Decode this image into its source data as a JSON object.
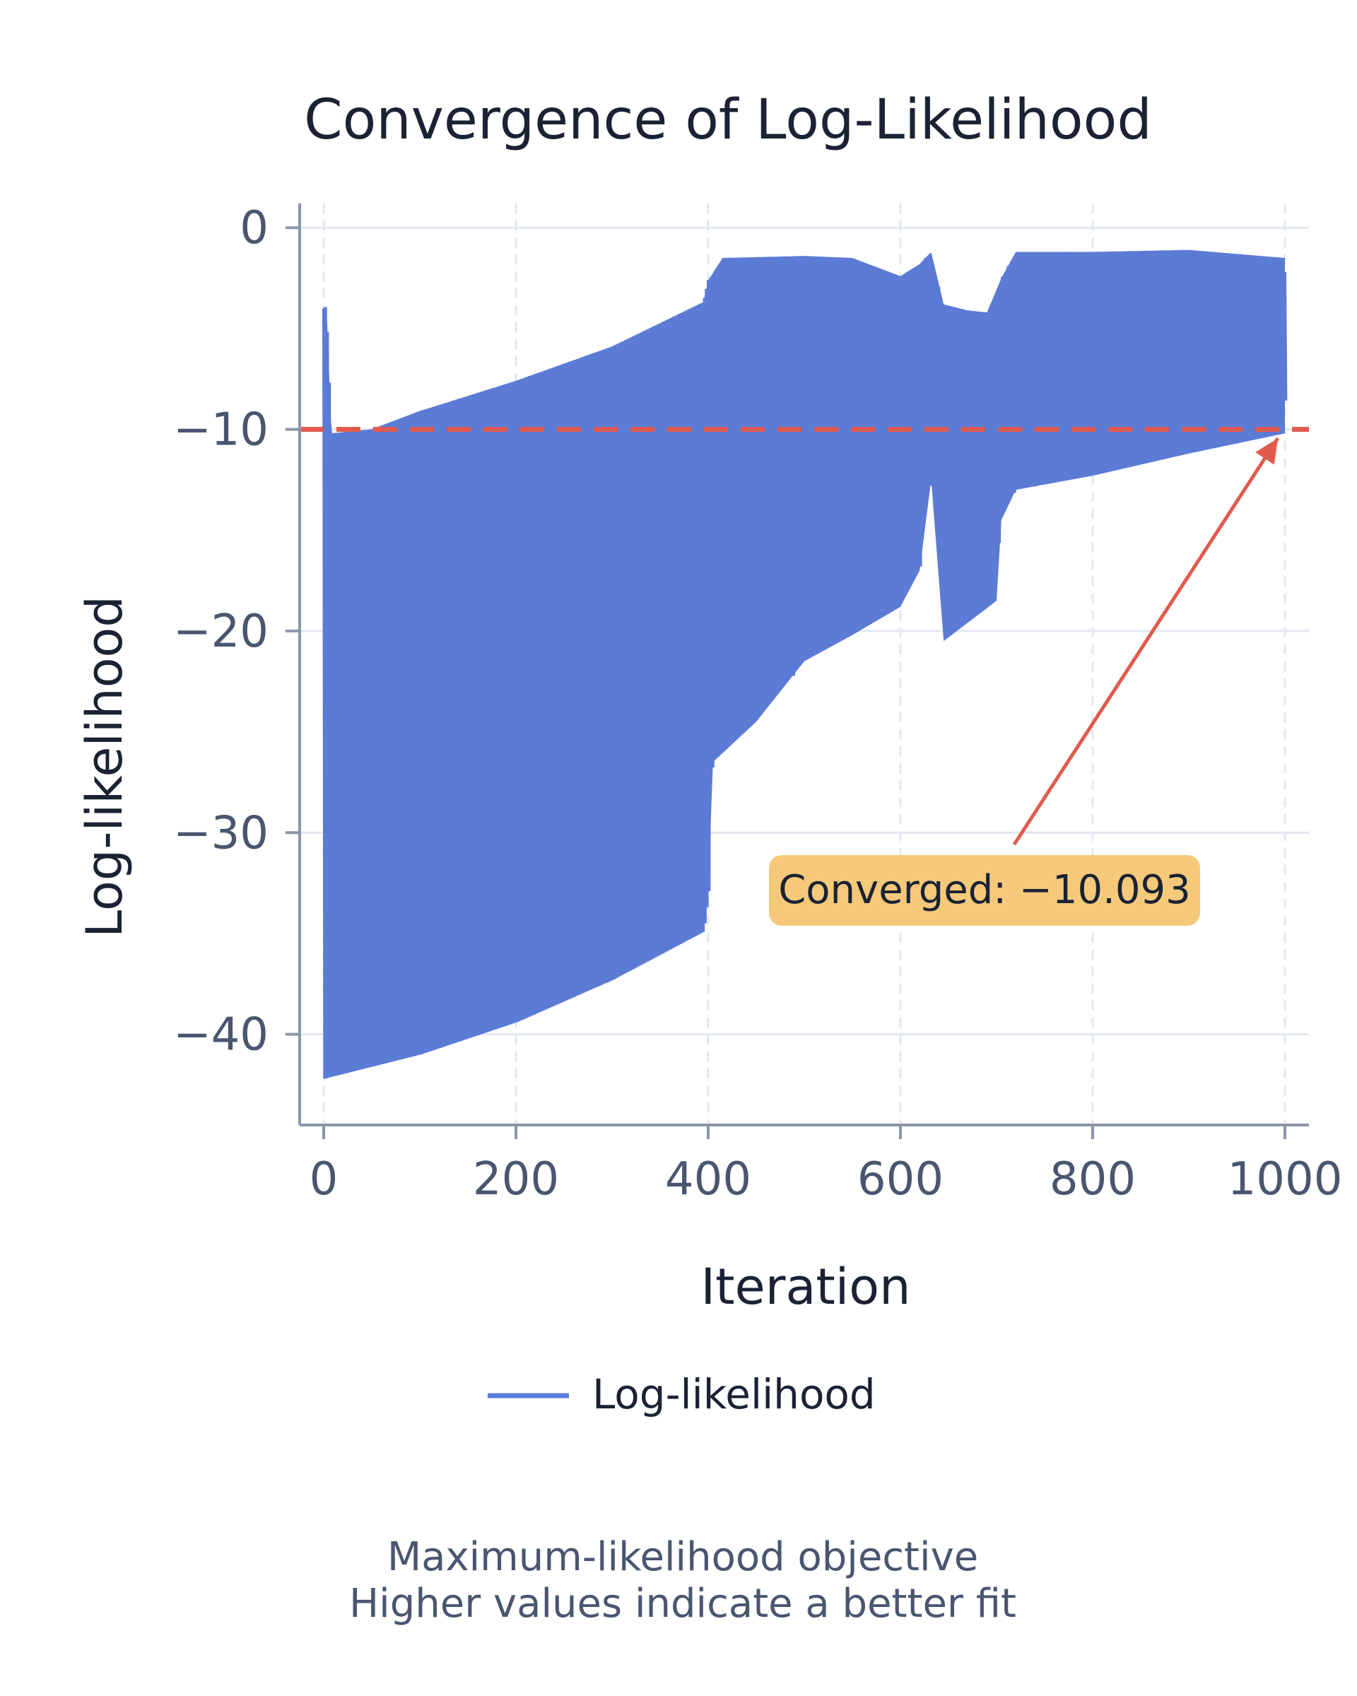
{
  "chart_data": {
    "type": "line",
    "title": "Convergence of Log-Likelihood",
    "xlabel": "Iteration",
    "ylabel": "Log-likelihood",
    "xlim": [
      -25,
      1025
    ],
    "ylim": [
      -44.5,
      1.2
    ],
    "xticks": [
      0,
      200,
      400,
      600,
      800,
      1000
    ],
    "xtick_labels": [
      "0",
      "200",
      "400",
      "600",
      "800",
      "1000"
    ],
    "yticks": [
      0,
      -10,
      -20,
      -30,
      -40
    ],
    "ytick_labels": [
      "0",
      "−10",
      "−20",
      "−30",
      "−40"
    ],
    "grid": true,
    "legend": {
      "position": "bottom-center",
      "entries": [
        "Log-likelihood"
      ]
    },
    "series": [
      {
        "name": "Log-likelihood",
        "color": "#5b7bd5",
        "description": "oscillating objective; lower envelope rises from about -42 to about -10, upper envelope from about -10 to about -1",
        "band_upper": [
          [
            0,
            -4
          ],
          [
            3,
            -3.9
          ],
          [
            8,
            -10.2
          ],
          [
            50,
            -10
          ],
          [
            100,
            -9.1
          ],
          [
            200,
            -7.6
          ],
          [
            300,
            -5.9
          ],
          [
            395,
            -3.7
          ],
          [
            400,
            -2.6
          ],
          [
            415,
            -1.5
          ],
          [
            500,
            -1.4
          ],
          [
            550,
            -1.5
          ],
          [
            600,
            -2.4
          ],
          [
            620,
            -1.8
          ],
          [
            632,
            -1.2
          ],
          [
            645,
            -3.8
          ],
          [
            670,
            -4.1
          ],
          [
            690,
            -4.2
          ],
          [
            705,
            -2.5
          ],
          [
            720,
            -1.2
          ],
          [
            800,
            -1.2
          ],
          [
            900,
            -1.1
          ],
          [
            1000,
            -1.5
          ]
        ],
        "band_lower": [
          [
            0,
            -42.2
          ],
          [
            100,
            -41
          ],
          [
            200,
            -39.4
          ],
          [
            300,
            -37.3
          ],
          [
            395,
            -34.9
          ],
          [
            400,
            -32.9
          ],
          [
            405,
            -26.5
          ],
          [
            450,
            -24.5
          ],
          [
            500,
            -21.5
          ],
          [
            550,
            -20.2
          ],
          [
            600,
            -18.8
          ],
          [
            620,
            -17
          ],
          [
            632,
            -12.5
          ],
          [
            645,
            -20.5
          ],
          [
            700,
            -18.5
          ],
          [
            705,
            -14.5
          ],
          [
            720,
            -13
          ],
          [
            800,
            -12.3
          ],
          [
            900,
            -11.2
          ],
          [
            1000,
            -10.2
          ]
        ]
      }
    ],
    "reference_line": {
      "y": -10,
      "color": "#e05a4e",
      "style": "dashed"
    },
    "annotation": {
      "text": "Converged: −10.093",
      "target": [
        1000,
        -10.093
      ],
      "box_color": "#f6c97a",
      "arrow_color": "#e05a4e"
    },
    "subtitle_lines": [
      "Maximum-likelihood objective",
      "Higher values indicate a better fit"
    ]
  }
}
